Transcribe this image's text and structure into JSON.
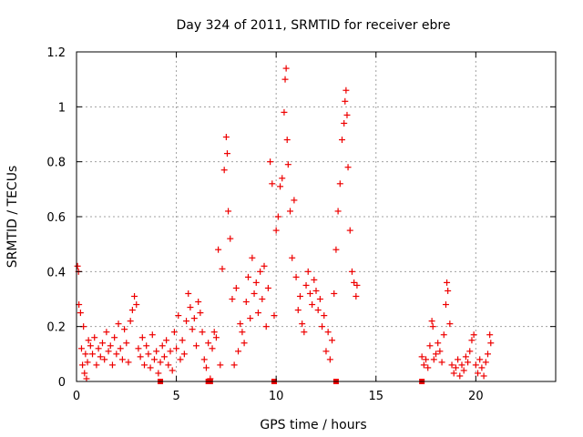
{
  "chart_data": {
    "type": "scatter",
    "title": "Day 324 of 2011, SRMTID for receiver ebre",
    "xlabel": "GPS time / hours",
    "ylabel": "SRMTID / TECUs",
    "xlim": [
      0,
      24
    ],
    "ylim": [
      0,
      1.2
    ],
    "x_ticks": [
      "0",
      "5",
      "10",
      "15",
      "20"
    ],
    "y_ticks": [
      "0",
      "0.2",
      "0.4",
      "0.6",
      "0.8",
      "1",
      "1.2"
    ],
    "grid": true,
    "marker": "+",
    "colors": {
      "series": "#ee0000",
      "grid": "#a0a0a0",
      "axis": "#000000"
    },
    "series": [
      {
        "name": "SRMTID",
        "points": [
          [
            0.05,
            0.42
          ],
          [
            0.1,
            0.4
          ],
          [
            0.12,
            0.28
          ],
          [
            0.2,
            0.25
          ],
          [
            0.25,
            0.12
          ],
          [
            0.3,
            0.06
          ],
          [
            0.35,
            0.2
          ],
          [
            0.4,
            0.03
          ],
          [
            0.45,
            0.1
          ],
          [
            0.5,
            0.01
          ],
          [
            0.55,
            0.07
          ],
          [
            0.6,
            0.15
          ],
          [
            0.7,
            0.13
          ],
          [
            0.8,
            0.1
          ],
          [
            0.9,
            0.16
          ],
          [
            1.0,
            0.06
          ],
          [
            1.1,
            0.12
          ],
          [
            1.2,
            0.09
          ],
          [
            1.3,
            0.14
          ],
          [
            1.4,
            0.08
          ],
          [
            1.5,
            0.18
          ],
          [
            1.6,
            0.11
          ],
          [
            1.7,
            0.13
          ],
          [
            1.8,
            0.06
          ],
          [
            1.9,
            0.16
          ],
          [
            2.0,
            0.1
          ],
          [
            2.1,
            0.21
          ],
          [
            2.2,
            0.12
          ],
          [
            2.3,
            0.08
          ],
          [
            2.4,
            0.19
          ],
          [
            2.5,
            0.14
          ],
          [
            2.6,
            0.07
          ],
          [
            2.7,
            0.22
          ],
          [
            2.8,
            0.26
          ],
          [
            2.9,
            0.31
          ],
          [
            3.0,
            0.28
          ],
          [
            3.1,
            0.12
          ],
          [
            3.2,
            0.09
          ],
          [
            3.3,
            0.16
          ],
          [
            3.4,
            0.06
          ],
          [
            3.5,
            0.13
          ],
          [
            3.6,
            0.1
          ],
          [
            3.7,
            0.05
          ],
          [
            3.8,
            0.17
          ],
          [
            3.9,
            0.08
          ],
          [
            4.0,
            0.11
          ],
          [
            4.1,
            0.03
          ],
          [
            4.2,
            0.07
          ],
          [
            4.3,
            0.13
          ],
          [
            4.4,
            0.09
          ],
          [
            4.5,
            0.15
          ],
          [
            4.6,
            0.06
          ],
          [
            4.7,
            0.11
          ],
          [
            4.8,
            0.04
          ],
          [
            4.9,
            0.18
          ],
          [
            5.0,
            0.12
          ],
          [
            5.1,
            0.24
          ],
          [
            5.2,
            0.08
          ],
          [
            5.3,
            0.15
          ],
          [
            5.4,
            0.1
          ],
          [
            5.5,
            0.22
          ],
          [
            5.6,
            0.32
          ],
          [
            5.7,
            0.27
          ],
          [
            5.8,
            0.19
          ],
          [
            5.9,
            0.23
          ],
          [
            6.0,
            0.13
          ],
          [
            6.1,
            0.29
          ],
          [
            6.2,
            0.25
          ],
          [
            6.3,
            0.18
          ],
          [
            6.4,
            0.08
          ],
          [
            6.5,
            0.05
          ],
          [
            6.6,
            0.14
          ],
          [
            6.7,
            0.01
          ],
          [
            6.8,
            0.12
          ],
          [
            6.9,
            0.18
          ],
          [
            7.0,
            0.16
          ],
          [
            7.1,
            0.48
          ],
          [
            7.2,
            0.06
          ],
          [
            7.3,
            0.41
          ],
          [
            7.4,
            0.77
          ],
          [
            7.5,
            0.89
          ],
          [
            7.55,
            0.83
          ],
          [
            7.6,
            0.62
          ],
          [
            7.7,
            0.52
          ],
          [
            7.8,
            0.3
          ],
          [
            7.9,
            0.06
          ],
          [
            8.0,
            0.34
          ],
          [
            8.1,
            0.11
          ],
          [
            8.2,
            0.21
          ],
          [
            8.3,
            0.18
          ],
          [
            8.4,
            0.14
          ],
          [
            8.5,
            0.29
          ],
          [
            8.6,
            0.38
          ],
          [
            8.7,
            0.23
          ],
          [
            8.8,
            0.45
          ],
          [
            8.9,
            0.32
          ],
          [
            9.0,
            0.36
          ],
          [
            9.1,
            0.25
          ],
          [
            9.2,
            0.4
          ],
          [
            9.3,
            0.3
          ],
          [
            9.4,
            0.42
          ],
          [
            9.5,
            0.2
          ],
          [
            9.6,
            0.34
          ],
          [
            9.7,
            0.8
          ],
          [
            9.8,
            0.72
          ],
          [
            9.9,
            0.24
          ],
          [
            10.0,
            0.55
          ],
          [
            10.1,
            0.6
          ],
          [
            10.2,
            0.71
          ],
          [
            10.3,
            0.74
          ],
          [
            10.4,
            0.98
          ],
          [
            10.45,
            1.1
          ],
          [
            10.5,
            1.14
          ],
          [
            10.55,
            0.88
          ],
          [
            10.6,
            0.79
          ],
          [
            10.7,
            0.62
          ],
          [
            10.8,
            0.45
          ],
          [
            10.9,
            0.66
          ],
          [
            11.0,
            0.38
          ],
          [
            11.1,
            0.26
          ],
          [
            11.2,
            0.31
          ],
          [
            11.3,
            0.21
          ],
          [
            11.4,
            0.18
          ],
          [
            11.5,
            0.35
          ],
          [
            11.6,
            0.4
          ],
          [
            11.7,
            0.32
          ],
          [
            11.8,
            0.28
          ],
          [
            11.9,
            0.37
          ],
          [
            12.0,
            0.33
          ],
          [
            12.1,
            0.26
          ],
          [
            12.2,
            0.3
          ],
          [
            12.3,
            0.2
          ],
          [
            12.4,
            0.24
          ],
          [
            12.5,
            0.11
          ],
          [
            12.6,
            0.18
          ],
          [
            12.7,
            0.08
          ],
          [
            12.8,
            0.15
          ],
          [
            12.9,
            0.32
          ],
          [
            13.0,
            0.48
          ],
          [
            13.1,
            0.62
          ],
          [
            13.2,
            0.72
          ],
          [
            13.3,
            0.88
          ],
          [
            13.4,
            0.94
          ],
          [
            13.45,
            1.02
          ],
          [
            13.5,
            1.06
          ],
          [
            13.55,
            0.97
          ],
          [
            13.6,
            0.78
          ],
          [
            13.7,
            0.55
          ],
          [
            13.8,
            0.4
          ],
          [
            13.9,
            0.36
          ],
          [
            14.0,
            0.31
          ],
          [
            14.05,
            0.35
          ],
          [
            17.3,
            0.09
          ],
          [
            17.4,
            0.06
          ],
          [
            17.5,
            0.08
          ],
          [
            17.6,
            0.05
          ],
          [
            17.7,
            0.13
          ],
          [
            17.8,
            0.22
          ],
          [
            17.85,
            0.2
          ],
          [
            17.9,
            0.08
          ],
          [
            18.0,
            0.1
          ],
          [
            18.1,
            0.14
          ],
          [
            18.2,
            0.11
          ],
          [
            18.3,
            0.07
          ],
          [
            18.4,
            0.17
          ],
          [
            18.5,
            0.28
          ],
          [
            18.55,
            0.36
          ],
          [
            18.6,
            0.33
          ],
          [
            18.7,
            0.21
          ],
          [
            18.8,
            0.06
          ],
          [
            18.9,
            0.03
          ],
          [
            19.0,
            0.05
          ],
          [
            19.1,
            0.08
          ],
          [
            19.2,
            0.02
          ],
          [
            19.3,
            0.06
          ],
          [
            19.4,
            0.04
          ],
          [
            19.5,
            0.09
          ],
          [
            19.6,
            0.07
          ],
          [
            19.7,
            0.11
          ],
          [
            19.8,
            0.15
          ],
          [
            19.9,
            0.17
          ],
          [
            20.0,
            0.06
          ],
          [
            20.1,
            0.03
          ],
          [
            20.2,
            0.08
          ],
          [
            20.3,
            0.05
          ],
          [
            20.4,
            0.02
          ],
          [
            20.5,
            0.07
          ],
          [
            20.6,
            0.1
          ],
          [
            20.7,
            0.17
          ],
          [
            20.75,
            0.14
          ]
        ]
      },
      {
        "name": "SRMTID zero markers",
        "points": [
          [
            4.2,
            0
          ],
          [
            6.6,
            0
          ],
          [
            6.7,
            0
          ],
          [
            9.9,
            0
          ],
          [
            13.0,
            0
          ],
          [
            17.3,
            0
          ]
        ]
      }
    ]
  }
}
